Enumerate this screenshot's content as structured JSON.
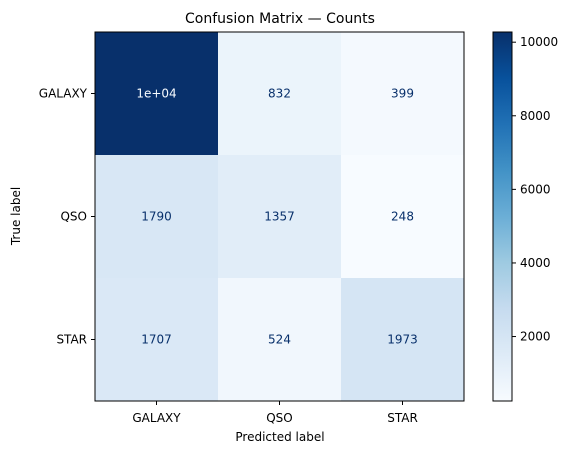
{
  "chart_data": {
    "type": "heatmap",
    "title": "Confusion Matrix — Counts",
    "xlabel": "Predicted label",
    "ylabel": "True label",
    "x_categories": [
      "GALAXY",
      "QSO",
      "STAR"
    ],
    "y_categories": [
      "GALAXY",
      "QSO",
      "STAR"
    ],
    "values": [
      [
        10277,
        832,
        399
      ],
      [
        1790,
        1357,
        248
      ],
      [
        1707,
        524,
        1973
      ]
    ],
    "cell_labels": [
      [
        "1e+04",
        "832",
        "399"
      ],
      [
        "1790",
        "1357",
        "248"
      ],
      [
        "1707",
        "524",
        "1973"
      ]
    ],
    "colormap": "Blues",
    "colorbar": {
      "ticks": [
        "2000",
        "4000",
        "6000",
        "8000",
        "10000"
      ],
      "range": [
        248,
        10277
      ]
    },
    "grid": false
  }
}
